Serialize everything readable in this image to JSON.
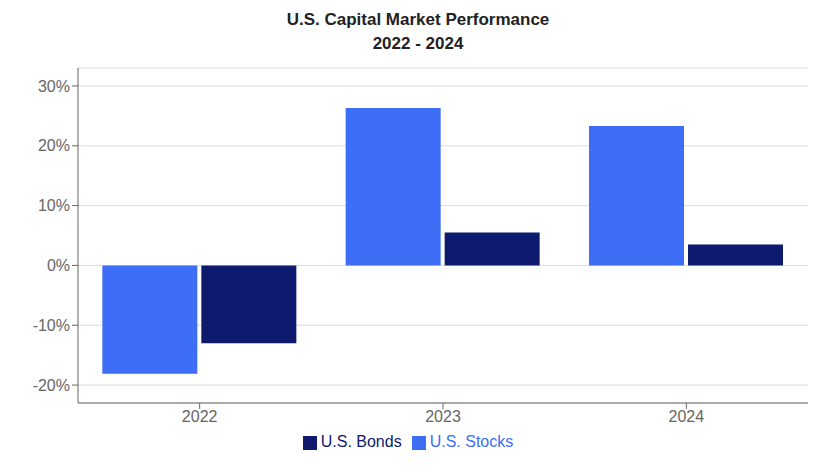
{
  "chart_data": {
    "type": "bar",
    "title": "U.S. Capital Market Performance",
    "subtitle": "2022 - 2024",
    "categories": [
      "2022",
      "2023",
      "2024"
    ],
    "series": [
      {
        "name": "U.S. Stocks",
        "color": "#3d6ef5",
        "values": [
          -18.1,
          26.3,
          23.3
        ]
      },
      {
        "name": "U.S. Bonds",
        "color": "#0d1a6e",
        "values": [
          -13.0,
          5.5,
          3.5
        ]
      }
    ],
    "ylim": [
      -23,
      33
    ],
    "yticks": [
      {
        "value": -20,
        "label": "-20%"
      },
      {
        "value": -10,
        "label": "-10%"
      },
      {
        "value": 0,
        "label": "0%"
      },
      {
        "value": 10,
        "label": "10%"
      },
      {
        "value": 20,
        "label": "20%"
      },
      {
        "value": 30,
        "label": "30%"
      }
    ],
    "grid": true,
    "legend": "bottom"
  }
}
